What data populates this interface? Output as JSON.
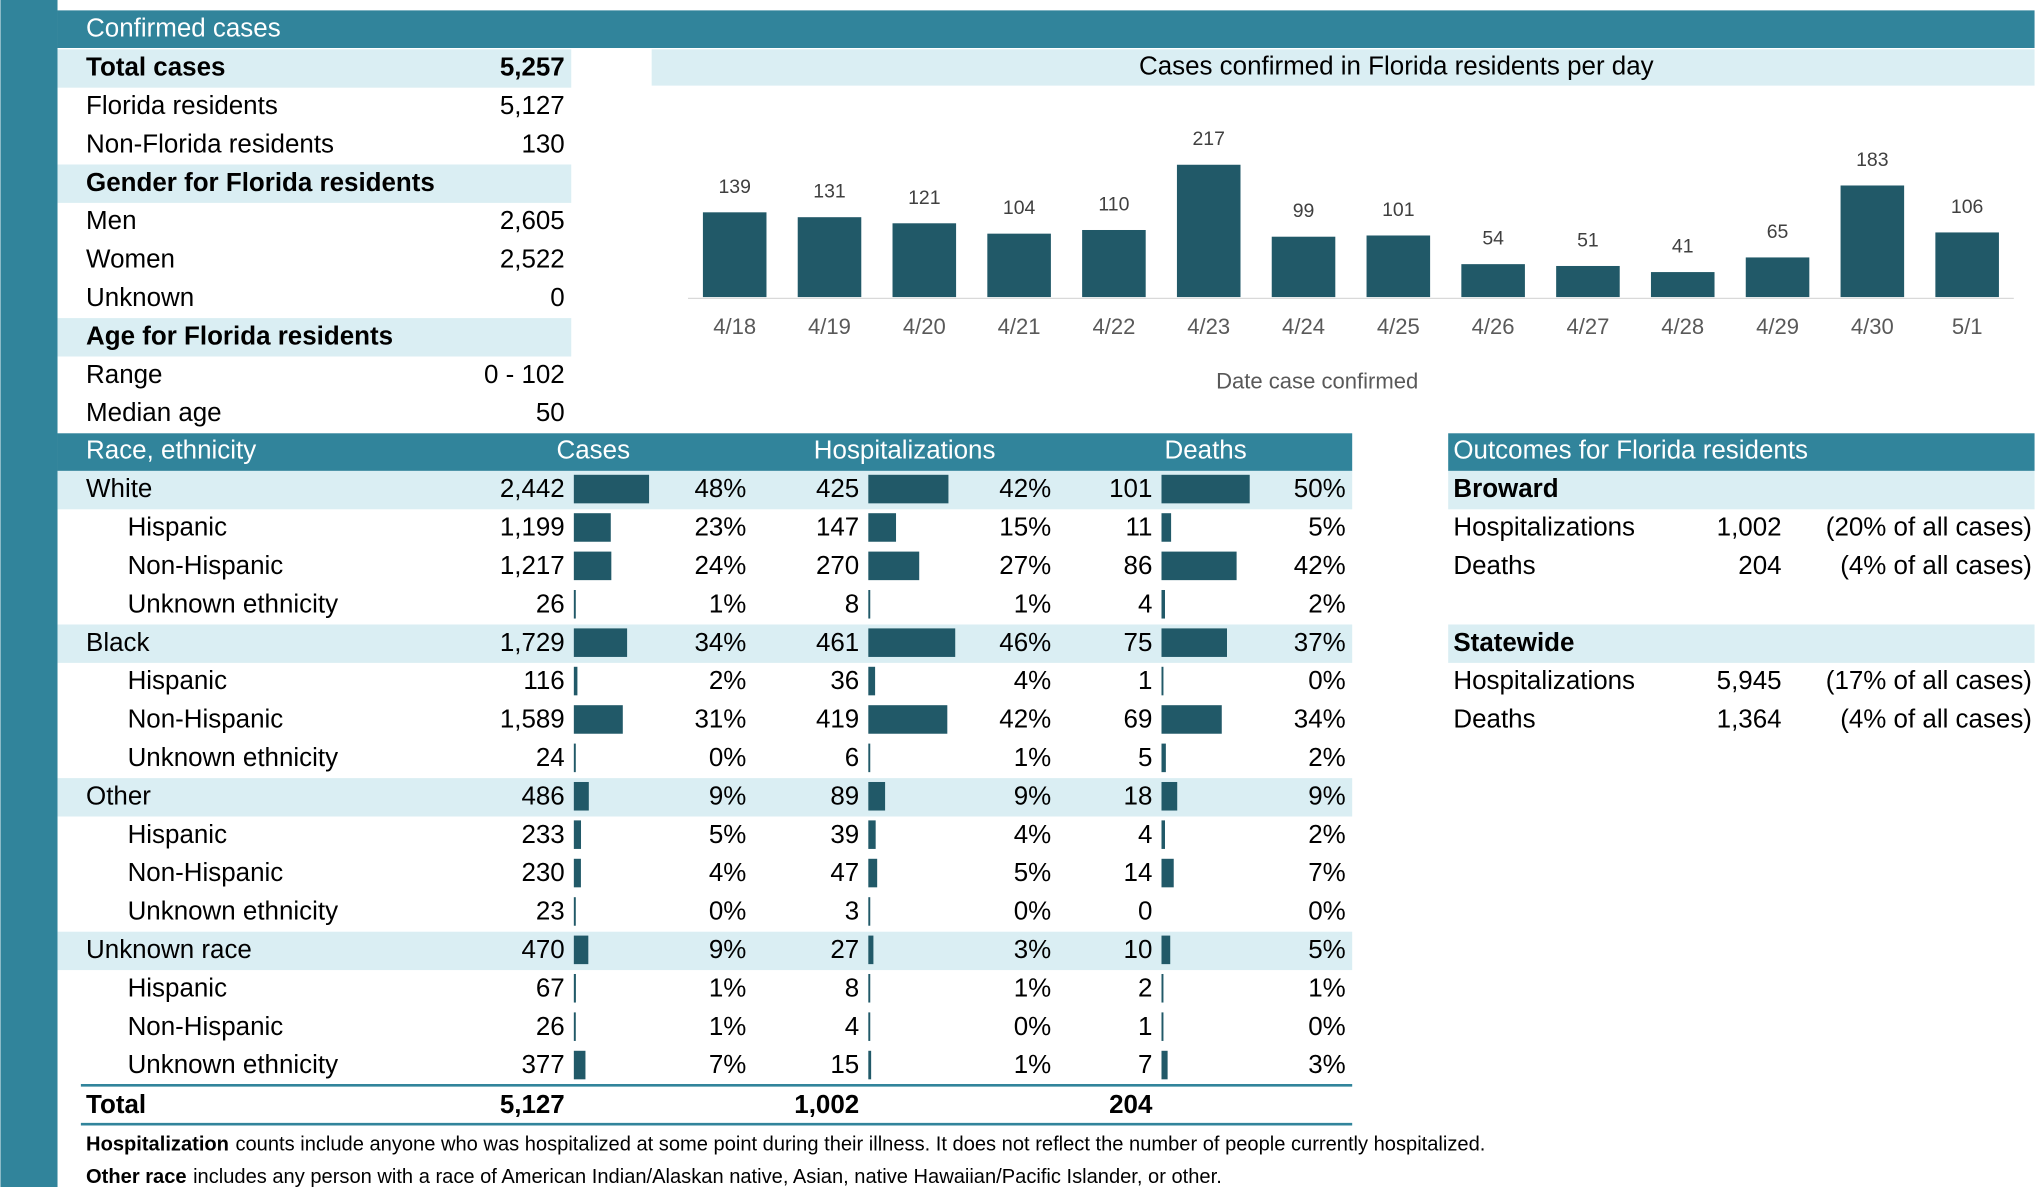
{
  "header": "Confirmed cases",
  "summary": [
    {
      "heading": "Total cases",
      "value": "5,257",
      "items": [
        {
          "label": "Florida residents",
          "value": "5,127"
        },
        {
          "label": "Non-Florida residents",
          "value": "130"
        }
      ]
    },
    {
      "heading": "Gender for Florida residents",
      "items": [
        {
          "label": "Men",
          "value": "2,605"
        },
        {
          "label": "Women",
          "value": "2,522"
        },
        {
          "label": "Unknown",
          "value": "0"
        }
      ]
    },
    {
      "heading": "Age for Florida residents",
      "items": [
        {
          "label": "Range",
          "value": "0 - 102"
        },
        {
          "label": "Median age",
          "value": "50"
        }
      ]
    }
  ],
  "chart_data": {
    "type": "bar",
    "title": "Cases confirmed in Florida residents per day",
    "categories": [
      "4/18",
      "4/19",
      "4/20",
      "4/21",
      "4/22",
      "4/23",
      "4/24",
      "4/25",
      "4/26",
      "4/27",
      "4/28",
      "4/29",
      "4/30",
      "5/1"
    ],
    "values": [
      139,
      131,
      121,
      104,
      110,
      217,
      99,
      101,
      54,
      51,
      41,
      65,
      183,
      106
    ],
    "color": "#215968",
    "x_label": "Date case confirmed"
  },
  "race_table": {
    "columns": [
      "Race, ethnicity",
      "Cases",
      "Hospitalizations",
      "Deaths"
    ],
    "groups": [
      {
        "name": "White",
        "cases": {
          "value": 2442,
          "label": "2,442"
        },
        "cases_pct": "48%",
        "hosp": 425,
        "hosp_pct": "42%",
        "deaths": 101,
        "deaths_pct": "50%",
        "ethnicities": [
          {
            "name": "Hispanic",
            "cases": {
              "value": 1199,
              "label": "1,199"
            },
            "cases_pct": "23%",
            "hosp": 147,
            "hosp_pct": "15%",
            "deaths": 11,
            "deaths_pct": "5%"
          },
          {
            "name": "Non-Hispanic",
            "cases": {
              "value": 1217,
              "label": "1,217"
            },
            "cases_pct": "24%",
            "hosp": 270,
            "hosp_pct": "27%",
            "deaths": 86,
            "deaths_pct": "42%"
          },
          {
            "name": "Unknown ethnicity",
            "cases": 26,
            "cases_pct": "1%",
            "hosp": 8,
            "hosp_pct": "1%",
            "deaths": 4,
            "deaths_pct": "2%"
          }
        ]
      },
      {
        "name": "Black",
        "cases": {
          "value": 1729,
          "label": "1,729"
        },
        "cases_pct": "34%",
        "hosp": 461,
        "hosp_pct": "46%",
        "deaths": 75,
        "deaths_pct": "37%",
        "ethnicities": [
          {
            "name": "Hispanic",
            "cases": 116,
            "cases_pct": "2%",
            "hosp": 36,
            "hosp_pct": "4%",
            "deaths": 1,
            "deaths_pct": "0%"
          },
          {
            "name": "Non-Hispanic",
            "cases": {
              "value": 1589,
              "label": "1,589"
            },
            "cases_pct": "31%",
            "hosp": 419,
            "hosp_pct": "42%",
            "deaths": 69,
            "deaths_pct": "34%"
          },
          {
            "name": "Unknown ethnicity",
            "cases": 24,
            "cases_pct": "0%",
            "hosp": 6,
            "hosp_pct": "1%",
            "deaths": 5,
            "deaths_pct": "2%"
          }
        ]
      },
      {
        "name": "Other",
        "cases": 486,
        "cases_pct": "9%",
        "hosp": 89,
        "hosp_pct": "9%",
        "deaths": 18,
        "deaths_pct": "9%",
        "ethnicities": [
          {
            "name": "Hispanic",
            "cases": 233,
            "cases_pct": "5%",
            "hosp": 39,
            "hosp_pct": "4%",
            "deaths": 4,
            "deaths_pct": "2%"
          },
          {
            "name": "Non-Hispanic",
            "cases": 230,
            "cases_pct": "4%",
            "hosp": 47,
            "hosp_pct": "5%",
            "deaths": 14,
            "deaths_pct": "7%"
          },
          {
            "name": "Unknown ethnicity",
            "cases": 23,
            "cases_pct": "0%",
            "hosp": 3,
            "hosp_pct": "0%",
            "deaths": 0,
            "deaths_pct": "0%"
          }
        ]
      },
      {
        "name": "Unknown race",
        "cases": 470,
        "cases_pct": "9%",
        "hosp": 27,
        "hosp_pct": "3%",
        "deaths": 10,
        "deaths_pct": "5%",
        "ethnicities": [
          {
            "name": "Hispanic",
            "cases": 67,
            "cases_pct": "1%",
            "hosp": 8,
            "hosp_pct": "1%",
            "deaths": 2,
            "deaths_pct": "1%"
          },
          {
            "name": "Non-Hispanic",
            "cases": 26,
            "cases_pct": "1%",
            "hosp": 4,
            "hosp_pct": "0%",
            "deaths": 1,
            "deaths_pct": "0%"
          },
          {
            "name": "Unknown ethnicity",
            "cases": 377,
            "cases_pct": "7%",
            "hosp": 15,
            "hosp_pct": "1%",
            "deaths": 7,
            "deaths_pct": "3%"
          }
        ]
      }
    ],
    "total": {
      "label": "Total",
      "cases": "5,127",
      "hosp": "1,002",
      "deaths": "204"
    }
  },
  "outcomes": {
    "title": "Outcomes for Florida residents",
    "sections": [
      {
        "heading": "Broward",
        "items": [
          {
            "label": "Hospitalizations",
            "value": "1,002",
            "note": "(20% of all cases)"
          },
          {
            "label": "Deaths",
            "value": "204",
            "note": "(4% of all cases)"
          }
        ]
      },
      {
        "heading": "Statewide",
        "items": [
          {
            "label": "Hospitalizations",
            "value": "5,945",
            "note": "(17% of all cases)"
          },
          {
            "label": "Deaths",
            "value": "1,364",
            "note": "(4% of all cases)"
          }
        ]
      }
    ]
  },
  "footnotes": [
    {
      "term": "Hospitalization",
      "text": "counts include anyone who was hospitalized at some point during their illness. It does not reflect the number of people currently hospitalized."
    },
    {
      "term": "Other race",
      "text": "includes any person with a race of American Indian/Alaskan native, Asian, native Hawaiian/Pacific Islander, or other."
    }
  ]
}
